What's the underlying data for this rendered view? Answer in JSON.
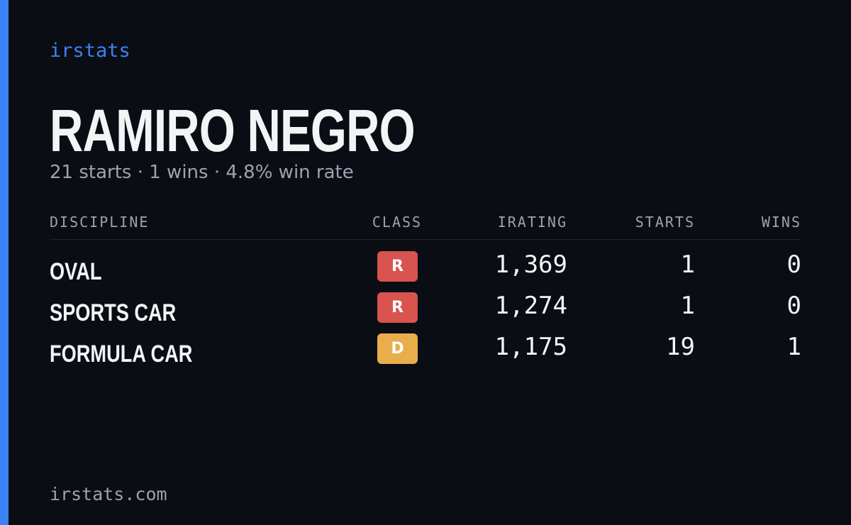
{
  "brand": "irstats",
  "driver": {
    "name": "RAMIRO NEGRO",
    "summary": "21 starts · 1 wins · 4.8% win rate"
  },
  "table": {
    "headers": [
      "DISCIPLINE",
      "CLASS",
      "IRATING",
      "STARTS",
      "WINS"
    ],
    "rows": [
      {
        "discipline": "OVAL",
        "class": "R",
        "class_color": "#d9534f",
        "irating": "1,369",
        "starts": 1,
        "wins": 0
      },
      {
        "discipline": "SPORTS CAR",
        "class": "R",
        "class_color": "#d9534f",
        "irating": "1,274",
        "starts": 1,
        "wins": 0
      },
      {
        "discipline": "FORMULA CAR",
        "class": "D",
        "class_color": "#e9ad4c",
        "irating": "1,175",
        "starts": 19,
        "wins": 1
      }
    ]
  },
  "footer": "irstats.com"
}
